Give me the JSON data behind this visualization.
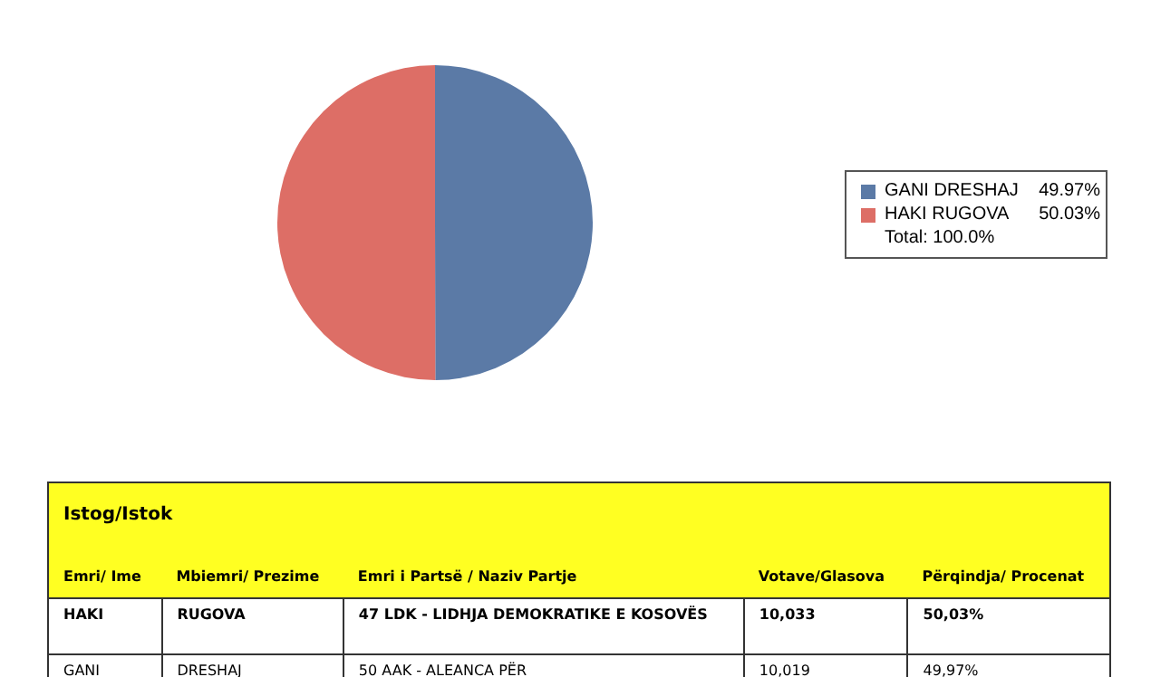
{
  "chart_data": {
    "type": "pie",
    "categories": [
      "GANI DRESHAJ",
      "HAKI RUGOVA"
    ],
    "values": [
      49.97,
      50.03
    ],
    "colors": [
      "#5b7aa6",
      "#dd6e66"
    ],
    "value_labels": [
      "49.97%",
      "50.03%"
    ],
    "legend": "right",
    "annotations": [
      "Total: 100.0%",
      "Istog/Istok",
      "Emri/ Ime",
      "Mbiemri/ Prezime",
      "Emri i Partsë / Naziv Partje",
      "Votave/Glasova",
      "Përqindja/ Procenat",
      "HAKI",
      "RUGOVA",
      "47 LDK - LIDHJA DEMOKRATIKE E KOSOVËS",
      "10,033",
      "50,03%",
      "GANI",
      "DRESHAJ",
      "50 AAK - ALEANCA PËR",
      "10,019",
      "49,97%"
    ]
  }
}
